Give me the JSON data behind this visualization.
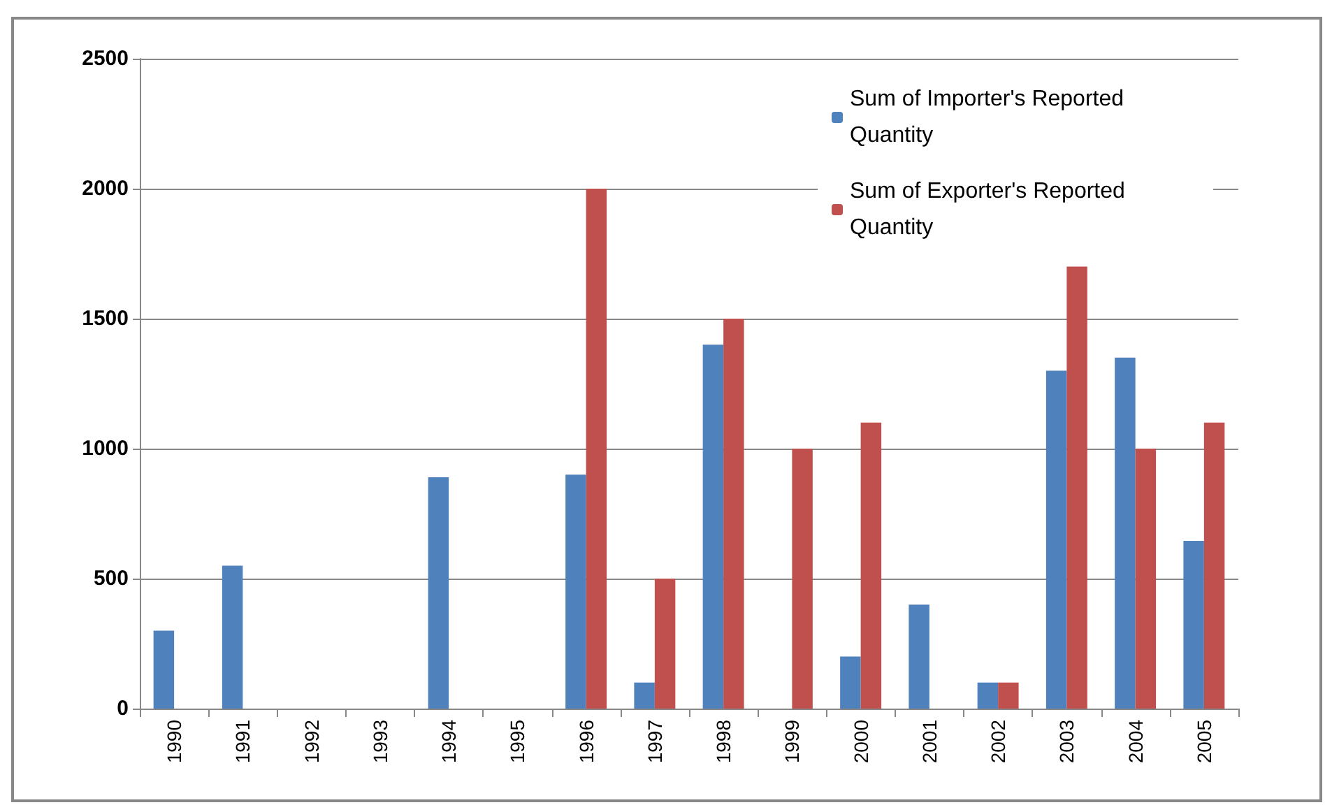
{
  "chart_data": {
    "type": "bar",
    "categories": [
      "1990",
      "1991",
      "1992",
      "1993",
      "1994",
      "1995",
      "1996",
      "1997",
      "1998",
      "1999",
      "2000",
      "2001",
      "2002",
      "2003",
      "2004",
      "2005"
    ],
    "series": [
      {
        "name": "Sum of Importer's Reported Quantity",
        "color": "#4f81bd",
        "values": [
          300,
          550,
          null,
          null,
          890,
          null,
          900,
          100,
          1400,
          null,
          200,
          400,
          100,
          1300,
          1350,
          645
        ]
      },
      {
        "name": "Sum of Exporter's Reported Quantity",
        "color": "#c0504d",
        "values": [
          null,
          null,
          null,
          null,
          null,
          null,
          2000,
          500,
          1500,
          1000,
          1100,
          null,
          100,
          1700,
          1000,
          1100
        ]
      }
    ],
    "ylim": [
      0,
      2500
    ],
    "yticks": [
      0,
      500,
      1000,
      1500,
      2000,
      2500
    ],
    "grid": "y",
    "legend": "top right"
  }
}
